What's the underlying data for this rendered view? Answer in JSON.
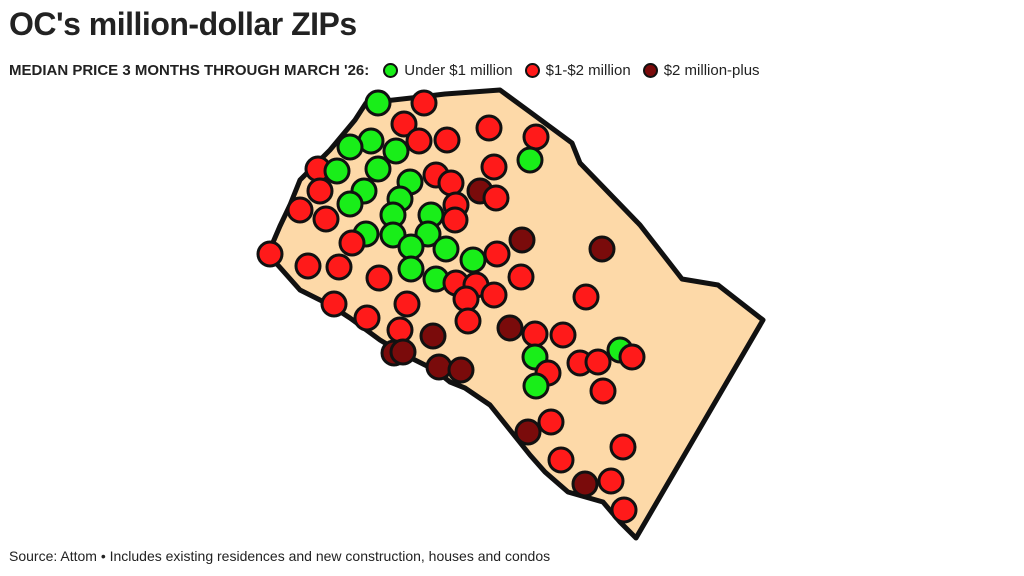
{
  "title": "OC's million-dollar ZIPs",
  "subtitle": "MEDIAN PRICE 3 MONTHS THROUGH MARCH '26:",
  "legend": [
    {
      "key": "under",
      "label": "Under $1 million",
      "color": "#19ee19"
    },
    {
      "key": "mid",
      "label": "$1-$2 million",
      "color": "#ff1a1a"
    },
    {
      "key": "plus",
      "label": "$2 million-plus",
      "color": "#7a0b0b"
    }
  ],
  "map": {
    "region_fill": "#fdd9a8",
    "outline_color": "#111111"
  },
  "source": "Source: Attom • Includes existing residences and new construction, houses and condos"
}
